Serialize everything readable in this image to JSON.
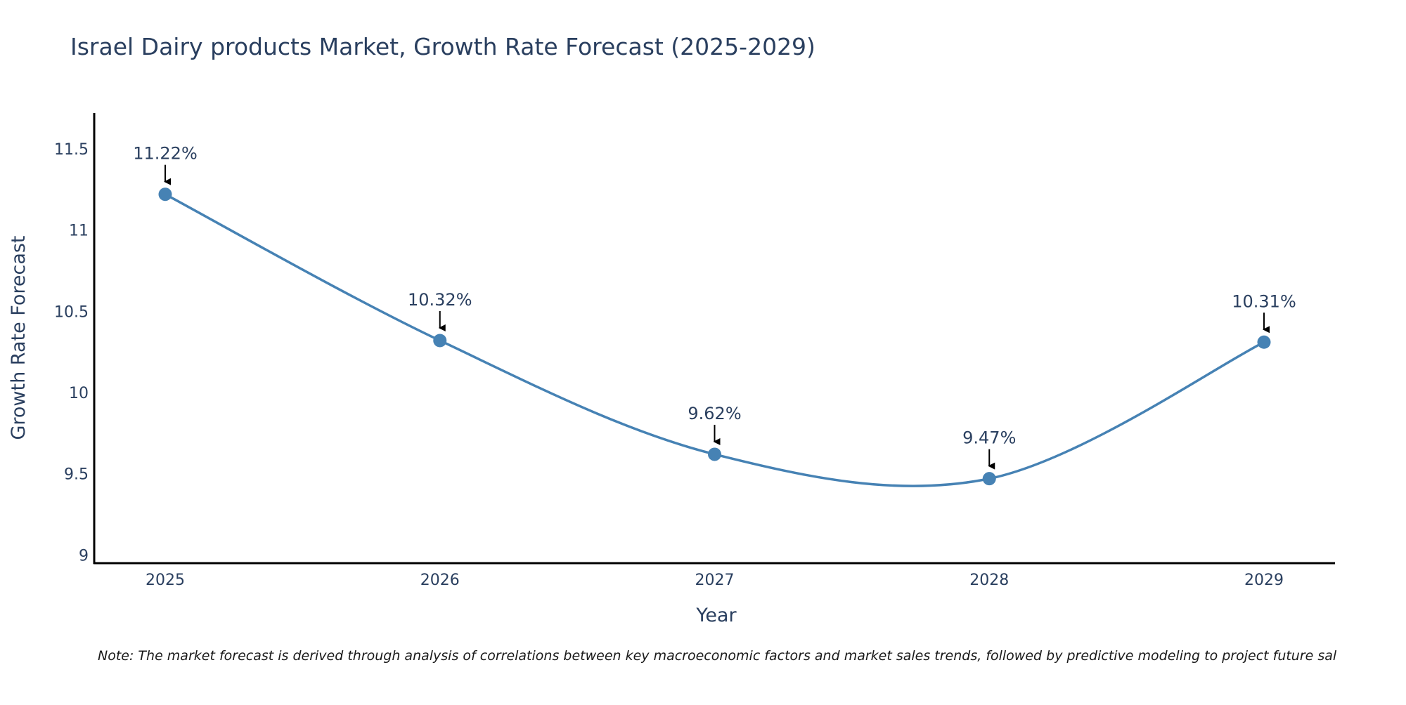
{
  "chart_data": {
    "type": "line",
    "title": "Israel Dairy products Market, Growth Rate Forecast (2025-2029)",
    "xlabel": "Year",
    "ylabel": "Growth Rate Forecast",
    "categories": [
      "2025",
      "2026",
      "2027",
      "2028",
      "2029"
    ],
    "series": [
      {
        "values": [
          11.22,
          10.32,
          9.62,
          9.47,
          10.31
        ],
        "data_labels": [
          "11.22%",
          "10.32%",
          "9.62%",
          "9.47%",
          "10.31%"
        ]
      }
    ],
    "ylim": [
      8.95,
      11.72
    ],
    "y_ticks": [
      9,
      9.5,
      10,
      10.5,
      11,
      11.5
    ],
    "y_tick_labels": [
      "9",
      "9.5",
      "10",
      "10.5",
      "11",
      "11.5"
    ],
    "line_shape": "spline",
    "markers": true,
    "annotations": "arrow above each point with percentage label",
    "grid": false,
    "legend": "none",
    "note": "Note: The market forecast is derived through analysis of correlations between key macroeconomic factors and market sales trends, followed by predictive modeling to project future sal",
    "colors": {
      "line": "#4682b4",
      "marker": "#4682b4",
      "axis": "#000000",
      "text": "#2a3f5f",
      "arrow": "#000000"
    }
  }
}
